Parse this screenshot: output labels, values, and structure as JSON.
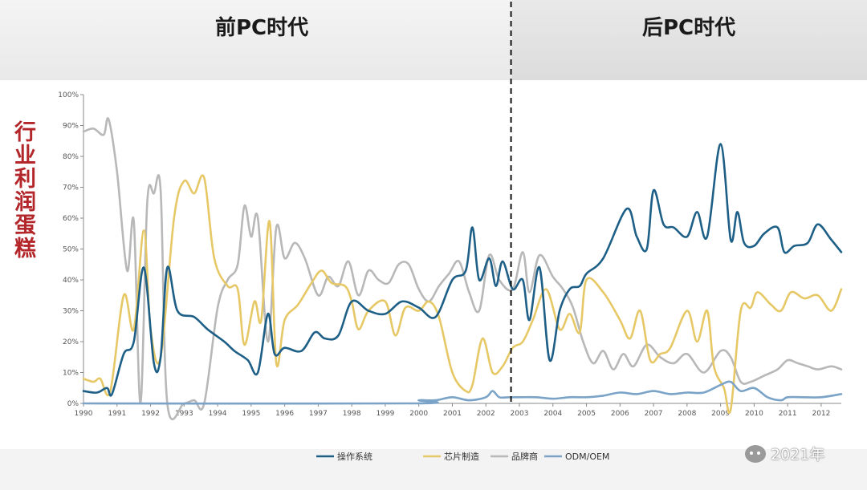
{
  "header": {
    "left_title": "前PC时代",
    "right_title": "后PC时代"
  },
  "side_title": "行业利润蛋糕",
  "watermark": "2021年",
  "chart_data": {
    "type": "line",
    "x_ticks": [
      "1990",
      "1991",
      "1992",
      "1993",
      "1994",
      "1995",
      "1996",
      "1997",
      "1998",
      "1999",
      "2000",
      "2001",
      "2002",
      "2003",
      "2004",
      "2005",
      "2006",
      "2007",
      "2008",
      "2009",
      "2010",
      "2011",
      "2012"
    ],
    "y_ticks": [
      "0%",
      "10%",
      "20%",
      "30%",
      "40%",
      "50%",
      "60%",
      "70%",
      "80%",
      "90%",
      "100%"
    ],
    "xlim": [
      1990,
      2012.6
    ],
    "ylim": [
      0,
      100
    ],
    "divider_x": 2002.75,
    "legend_position": "bottom",
    "series": [
      {
        "name": "操作系统",
        "color": "#1d5f86",
        "points": [
          [
            1990,
            4
          ],
          [
            1990.4,
            3.5
          ],
          [
            1990.7,
            5
          ],
          [
            1990.85,
            3
          ],
          [
            1991.2,
            16
          ],
          [
            1991.5,
            20
          ],
          [
            1991.8,
            44
          ],
          [
            1992.1,
            13
          ],
          [
            1992.3,
            15
          ],
          [
            1992.5,
            44
          ],
          [
            1992.8,
            30
          ],
          [
            1993.3,
            28
          ],
          [
            1993.7,
            24
          ],
          [
            1994.2,
            20
          ],
          [
            1994.5,
            17
          ],
          [
            1994.9,
            14
          ],
          [
            1995.2,
            10
          ],
          [
            1995.5,
            29
          ],
          [
            1995.7,
            16
          ],
          [
            1996,
            18
          ],
          [
            1996.5,
            17
          ],
          [
            1996.9,
            23
          ],
          [
            1997.2,
            21
          ],
          [
            1997.6,
            22
          ],
          [
            1998,
            33
          ],
          [
            1998.5,
            30
          ],
          [
            1999,
            29
          ],
          [
            1999.5,
            33
          ],
          [
            2000,
            31
          ],
          [
            2000.5,
            28
          ],
          [
            2001,
            40
          ],
          [
            2001.4,
            43
          ],
          [
            2001.6,
            57
          ],
          [
            2001.8,
            40
          ],
          [
            2002.1,
            47
          ],
          [
            2002.3,
            38
          ],
          [
            2002.5,
            46
          ],
          [
            2002.8,
            37
          ],
          [
            2003.1,
            40
          ],
          [
            2003.3,
            27
          ],
          [
            2003.6,
            44
          ],
          [
            2003.9,
            14
          ],
          [
            2004.2,
            30
          ],
          [
            2004.5,
            37
          ],
          [
            2004.8,
            38
          ],
          [
            2005,
            42
          ],
          [
            2005.5,
            47
          ],
          [
            2006.2,
            63
          ],
          [
            2006.5,
            54
          ],
          [
            2006.8,
            50
          ],
          [
            2007,
            69
          ],
          [
            2007.3,
            58
          ],
          [
            2007.6,
            57
          ],
          [
            2008,
            54
          ],
          [
            2008.3,
            62
          ],
          [
            2008.6,
            54
          ],
          [
            2009,
            84
          ],
          [
            2009.3,
            53
          ],
          [
            2009.5,
            62
          ],
          [
            2009.7,
            52
          ],
          [
            2010,
            51
          ],
          [
            2010.3,
            55
          ],
          [
            2010.7,
            57
          ],
          [
            2010.9,
            49
          ],
          [
            2011.2,
            51
          ],
          [
            2011.6,
            52
          ],
          [
            2011.9,
            58
          ],
          [
            2012.3,
            53
          ],
          [
            2012.6,
            49
          ]
        ]
      },
      {
        "name": "芯片制造",
        "color": "#e6c866",
        "points": [
          [
            1990,
            8
          ],
          [
            1990.3,
            7
          ],
          [
            1990.5,
            8
          ],
          [
            1990.8,
            4
          ],
          [
            1991.2,
            35
          ],
          [
            1991.5,
            24
          ],
          [
            1991.8,
            56
          ],
          [
            1992,
            24
          ],
          [
            1992.3,
            15
          ],
          [
            1992.7,
            60
          ],
          [
            1993,
            72
          ],
          [
            1993.3,
            68
          ],
          [
            1993.6,
            73
          ],
          [
            1993.9,
            47
          ],
          [
            1994.3,
            38
          ],
          [
            1994.6,
            37
          ],
          [
            1994.8,
            19
          ],
          [
            1995.1,
            33
          ],
          [
            1995.3,
            27
          ],
          [
            1995.55,
            59
          ],
          [
            1995.75,
            13
          ],
          [
            1996,
            27
          ],
          [
            1996.4,
            32
          ],
          [
            1996.8,
            39
          ],
          [
            1997.1,
            43
          ],
          [
            1997.4,
            39
          ],
          [
            1997.8,
            38
          ],
          [
            1998,
            33
          ],
          [
            1998.2,
            24
          ],
          [
            1998.5,
            30
          ],
          [
            1999,
            33
          ],
          [
            1999.3,
            22
          ],
          [
            1999.6,
            31
          ],
          [
            2000,
            30
          ],
          [
            2000.3,
            33
          ],
          [
            2000.6,
            28
          ],
          [
            2001,
            10
          ],
          [
            2001.4,
            4
          ],
          [
            2001.6,
            6
          ],
          [
            2001.9,
            21
          ],
          [
            2002.2,
            10
          ],
          [
            2002.5,
            12
          ],
          [
            2002.8,
            18
          ],
          [
            2003.1,
            20
          ],
          [
            2003.4,
            27
          ],
          [
            2003.8,
            37
          ],
          [
            2004.2,
            24
          ],
          [
            2004.5,
            29
          ],
          [
            2004.8,
            23
          ],
          [
            2005,
            40
          ],
          [
            2005.5,
            36
          ],
          [
            2006,
            27
          ],
          [
            2006.3,
            21
          ],
          [
            2006.6,
            30
          ],
          [
            2006.9,
            14
          ],
          [
            2007.2,
            16
          ],
          [
            2007.5,
            18
          ],
          [
            2008,
            30
          ],
          [
            2008.3,
            20
          ],
          [
            2008.6,
            30
          ],
          [
            2008.8,
            12
          ],
          [
            2009.1,
            5
          ],
          [
            2009.3,
            -2
          ],
          [
            2009.6,
            30
          ],
          [
            2009.9,
            31
          ],
          [
            2010.1,
            36
          ],
          [
            2010.5,
            32
          ],
          [
            2010.8,
            30
          ],
          [
            2011.1,
            36
          ],
          [
            2011.5,
            34
          ],
          [
            2011.9,
            35
          ],
          [
            2012.3,
            30
          ],
          [
            2012.6,
            37
          ]
        ]
      },
      {
        "name": "品牌商",
        "color": "#b8b8b8",
        "points": [
          [
            1990,
            88
          ],
          [
            1990.3,
            89
          ],
          [
            1990.6,
            87
          ],
          [
            1990.75,
            92
          ],
          [
            1991,
            75
          ],
          [
            1991.3,
            43
          ],
          [
            1991.5,
            59
          ],
          [
            1991.7,
            0
          ],
          [
            1991.9,
            65
          ],
          [
            1992.1,
            68
          ],
          [
            1992.3,
            69
          ],
          [
            1992.5,
            0
          ],
          [
            1993,
            0
          ],
          [
            1993.3,
            1
          ],
          [
            1993.6,
            0
          ],
          [
            1994,
            31
          ],
          [
            1994.3,
            40
          ],
          [
            1994.6,
            45
          ],
          [
            1994.8,
            64
          ],
          [
            1995,
            54
          ],
          [
            1995.2,
            60
          ],
          [
            1995.5,
            20
          ],
          [
            1995.75,
            57
          ],
          [
            1996,
            47
          ],
          [
            1996.3,
            52
          ],
          [
            1996.6,
            47
          ],
          [
            1997,
            35
          ],
          [
            1997.3,
            41
          ],
          [
            1997.6,
            38
          ],
          [
            1997.9,
            46
          ],
          [
            1998.2,
            35
          ],
          [
            1998.5,
            43
          ],
          [
            1998.8,
            40
          ],
          [
            1999.1,
            39
          ],
          [
            1999.4,
            45
          ],
          [
            1999.7,
            45
          ],
          [
            2000,
            37
          ],
          [
            2000.3,
            33
          ],
          [
            2000.6,
            38
          ],
          [
            2000.9,
            42
          ],
          [
            2001.2,
            46
          ],
          [
            2001.5,
            36
          ],
          [
            2001.8,
            30
          ],
          [
            2002.1,
            48
          ],
          [
            2002.4,
            40
          ],
          [
            2002.8,
            37
          ],
          [
            2003.1,
            49
          ],
          [
            2003.3,
            36
          ],
          [
            2003.6,
            48
          ],
          [
            2004,
            41
          ],
          [
            2004.3,
            37
          ],
          [
            2004.6,
            31
          ],
          [
            2004.9,
            20
          ],
          [
            2005.2,
            13
          ],
          [
            2005.5,
            17
          ],
          [
            2005.8,
            11
          ],
          [
            2006.1,
            16
          ],
          [
            2006.4,
            12
          ],
          [
            2006.8,
            19
          ],
          [
            2007.2,
            15
          ],
          [
            2007.6,
            13
          ],
          [
            2008,
            16
          ],
          [
            2008.5,
            10
          ],
          [
            2009,
            17
          ],
          [
            2009.3,
            15
          ],
          [
            2009.6,
            7
          ],
          [
            2009.9,
            7
          ],
          [
            2010.3,
            9
          ],
          [
            2010.7,
            11
          ],
          [
            2011,
            14
          ],
          [
            2011.3,
            13
          ],
          [
            2011.6,
            12
          ],
          [
            2011.9,
            11
          ],
          [
            2012.3,
            12
          ],
          [
            2012.6,
            11
          ]
        ]
      },
      {
        "name": "ODM/OEM",
        "color": "#7aa3c7",
        "points": [
          [
            1990,
            0
          ],
          [
            1999.8,
            0
          ],
          [
            2000,
            1
          ],
          [
            2000.5,
            1
          ],
          [
            2001,
            2
          ],
          [
            2001.5,
            1
          ],
          [
            2002,
            2
          ],
          [
            2002.2,
            4
          ],
          [
            2002.4,
            2
          ],
          [
            2002.7,
            2
          ],
          [
            2003,
            2
          ],
          [
            2003.5,
            2
          ],
          [
            2004,
            1.5
          ],
          [
            2004.5,
            2
          ],
          [
            2005,
            2
          ],
          [
            2005.5,
            2.5
          ],
          [
            2006,
            3.5
          ],
          [
            2006.5,
            3
          ],
          [
            2007,
            4
          ],
          [
            2007.5,
            3
          ],
          [
            2008,
            3.5
          ],
          [
            2008.5,
            3.5
          ],
          [
            2009,
            6
          ],
          [
            2009.3,
            7
          ],
          [
            2009.6,
            4
          ],
          [
            2010,
            5
          ],
          [
            2010.4,
            2
          ],
          [
            2010.8,
            1
          ],
          [
            2011,
            2
          ],
          [
            2011.5,
            2
          ],
          [
            2012,
            2
          ],
          [
            2012.6,
            3
          ]
        ]
      }
    ]
  }
}
